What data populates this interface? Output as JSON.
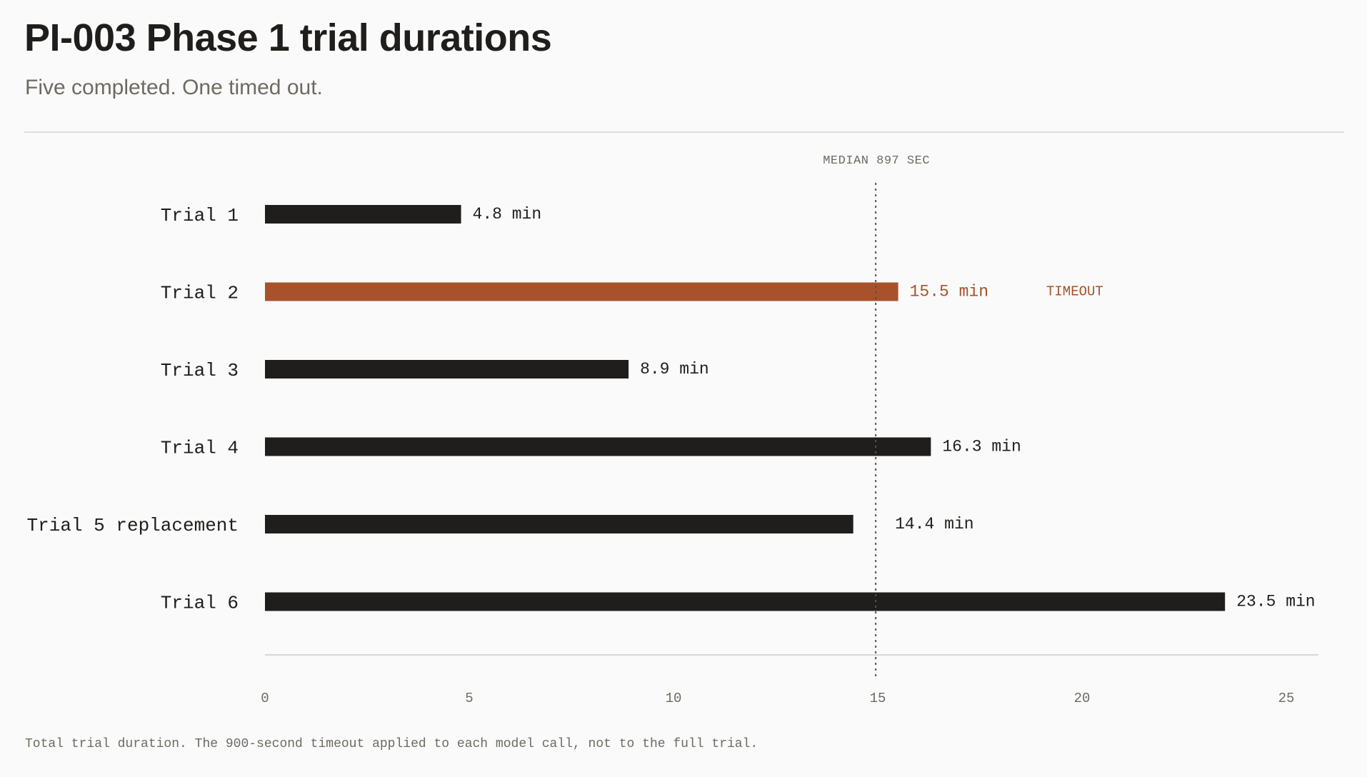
{
  "header": {
    "title": "PI-003 Phase 1 trial durations",
    "subtitle": "Five completed. One timed out."
  },
  "footnote": "Total trial duration. The 900-second timeout applied to each model call, not to the full trial.",
  "colors": {
    "background": "#fafafa",
    "bar": "#1f1e1c",
    "highlight": "#a8522b",
    "muted": "#6f6a62",
    "axis": "#d9d7d3"
  },
  "chart_data": {
    "type": "bar",
    "orientation": "horizontal",
    "categories": [
      "Trial 1",
      "Trial 2",
      "Trial 3",
      "Trial 4",
      "Trial 5 replacement",
      "Trial 6"
    ],
    "values": [
      4.8,
      15.5,
      8.9,
      16.3,
      14.4,
      23.5
    ],
    "value_labels": [
      "4.8 min",
      "15.5 min",
      "8.9 min",
      "16.3 min",
      "14.4 min",
      "23.5 min"
    ],
    "highlight": [
      false,
      true,
      false,
      false,
      false,
      false
    ],
    "annotations": [
      {
        "category": "Trial 2",
        "text": "TIMEOUT"
      }
    ],
    "reference_line": {
      "value": 14.95,
      "label": "MEDIAN 897 SEC"
    },
    "xlim": [
      0,
      25.8
    ],
    "xticks": [
      0,
      5,
      10,
      15,
      20,
      25
    ],
    "grid": false
  }
}
